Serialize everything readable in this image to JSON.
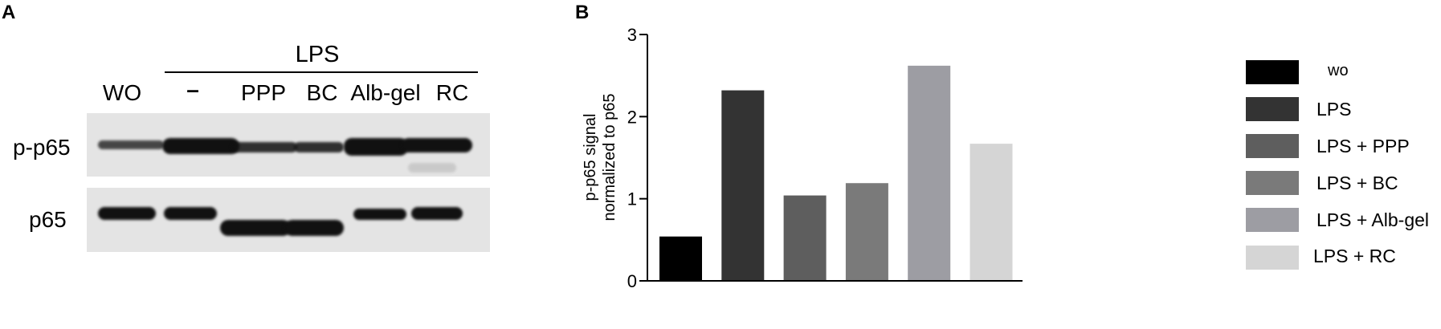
{
  "panel_a": {
    "label": "A",
    "treatment_label": "LPS",
    "lanes": [
      "WO",
      "–",
      "PPP",
      "BC",
      "Alb-gel",
      "RC"
    ],
    "rows": [
      "p-p65",
      "p65"
    ]
  },
  "panel_b": {
    "label": "B",
    "colors": {
      "wo": "#000000",
      "lps": "#333333",
      "ppp": "#5e5e5e",
      "bc": "#7a7a7a",
      "albgel": "#9d9da3",
      "rc": "#d5d5d5"
    }
  },
  "chart_data": {
    "type": "bar",
    "categories": [
      "wo",
      "LPS",
      "LPS + PPP",
      "LPS + BC",
      "LPS + Alb-gel",
      "LPS + RC"
    ],
    "values": [
      0.54,
      2.32,
      1.04,
      1.19,
      2.62,
      1.67
    ],
    "ylabel_line1": "p-p65 signal",
    "ylabel_line2": "normalized to p65",
    "ylim": [
      0,
      3
    ],
    "yticks": [
      "0",
      "1",
      "2",
      "3"
    ],
    "grid": false,
    "legend_position": "right",
    "legend": [
      "wo",
      "LPS",
      "LPS + PPP",
      "LPS + BC",
      "LPS + Alb-gel",
      "LPS + RC"
    ]
  }
}
